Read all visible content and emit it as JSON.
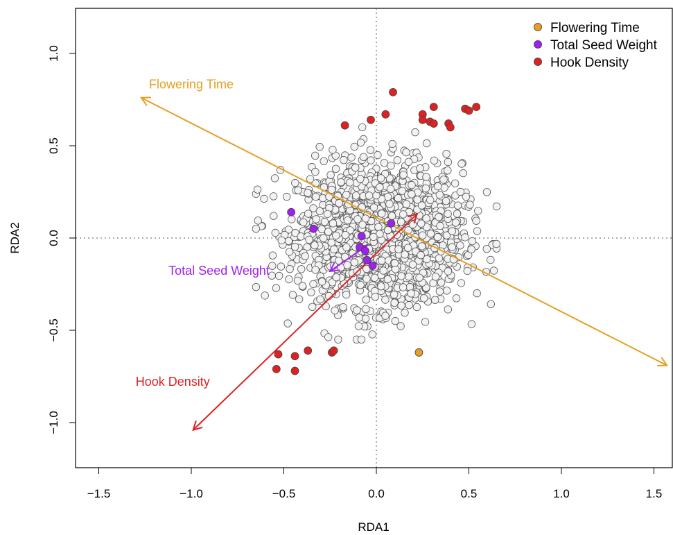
{
  "chart_data": {
    "type": "scatter",
    "title": "",
    "xlabel": "RDA1",
    "ylabel": "RDA2",
    "xlim": [
      -1.6,
      1.6
    ],
    "ylim": [
      -1.25,
      1.25
    ],
    "x_ticks": [
      -1.5,
      -1.0,
      -0.5,
      0.0,
      0.5,
      1.0,
      1.5
    ],
    "x_tick_labels": [
      "−1.5",
      "−1.0",
      "−0.5",
      "0.0",
      "0.5",
      "1.0",
      "1.5"
    ],
    "y_ticks": [
      -1.0,
      -0.5,
      0.0,
      0.5,
      1.0
    ],
    "y_tick_labels": [
      "−1.0",
      "−0.5",
      "0.0",
      "0.5",
      "1.0"
    ],
    "reference_lines": {
      "x": 0,
      "y": 0,
      "style": "dotted"
    },
    "legend": {
      "position": "top-right",
      "entries": [
        {
          "label": "Flowering Time",
          "color": "#E69F22"
        },
        {
          "label": "Total Seed Weight",
          "color": "#A020F0"
        },
        {
          "label": "Hook Density",
          "color": "#DD2222"
        }
      ]
    },
    "background_points": {
      "description": "Grey SNP cloud approximately centred at origin",
      "fill": "#F2F2F2",
      "stroke": "#555555",
      "count": 1700,
      "x_range": [
        -0.65,
        0.65
      ],
      "y_range": [
        -0.55,
        0.6
      ]
    },
    "series": [
      {
        "name": "Flowering Time",
        "color": "#E69F22",
        "points": [
          [
            0.23,
            -0.62
          ]
        ]
      },
      {
        "name": "Total Seed Weight",
        "color": "#A020F0",
        "points": [
          [
            -0.46,
            0.14
          ],
          [
            -0.34,
            0.05
          ],
          [
            -0.08,
            0.01
          ],
          [
            0.08,
            0.08
          ],
          [
            -0.09,
            -0.05
          ],
          [
            -0.05,
            -0.12
          ],
          [
            -0.02,
            -0.15
          ],
          [
            -0.06,
            -0.07
          ]
        ]
      },
      {
        "name": "Hook Density",
        "color": "#DD2222",
        "points": [
          [
            0.09,
            0.79
          ],
          [
            -0.03,
            0.64
          ],
          [
            0.05,
            0.67
          ],
          [
            -0.17,
            0.61
          ],
          [
            0.25,
            0.67
          ],
          [
            0.31,
            0.71
          ],
          [
            0.25,
            0.64
          ],
          [
            0.29,
            0.63
          ],
          [
            0.31,
            0.62
          ],
          [
            0.39,
            0.62
          ],
          [
            0.4,
            0.6
          ],
          [
            0.48,
            0.7
          ],
          [
            0.5,
            0.69
          ],
          [
            0.54,
            0.71
          ],
          [
            -0.53,
            -0.63
          ],
          [
            -0.44,
            -0.64
          ],
          [
            -0.37,
            -0.61
          ],
          [
            -0.24,
            -0.62
          ],
          [
            -0.23,
            -0.61
          ],
          [
            -0.54,
            -0.71
          ],
          [
            -0.44,
            -0.72
          ]
        ]
      }
    ],
    "biplot_arrows": [
      {
        "label": "Flowering Time",
        "color": "#E69F22",
        "from": [
          -1.27,
          0.76
        ],
        "to": [
          1.57,
          -0.69
        ],
        "label_pos": [
          -1.0,
          0.81
        ]
      },
      {
        "label": "Total Seed Weight",
        "color": "#A020F0",
        "from": [
          -0.25,
          -0.18
        ],
        "to": [
          -0.05,
          -0.04
        ],
        "label_pos": [
          -0.85,
          -0.2
        ]
      },
      {
        "label": "Hook Density",
        "color": "#DD2222",
        "from": [
          -0.99,
          -1.04
        ],
        "to": [
          0.22,
          0.13
        ],
        "label_pos": [
          -1.1,
          -0.8
        ]
      }
    ]
  }
}
